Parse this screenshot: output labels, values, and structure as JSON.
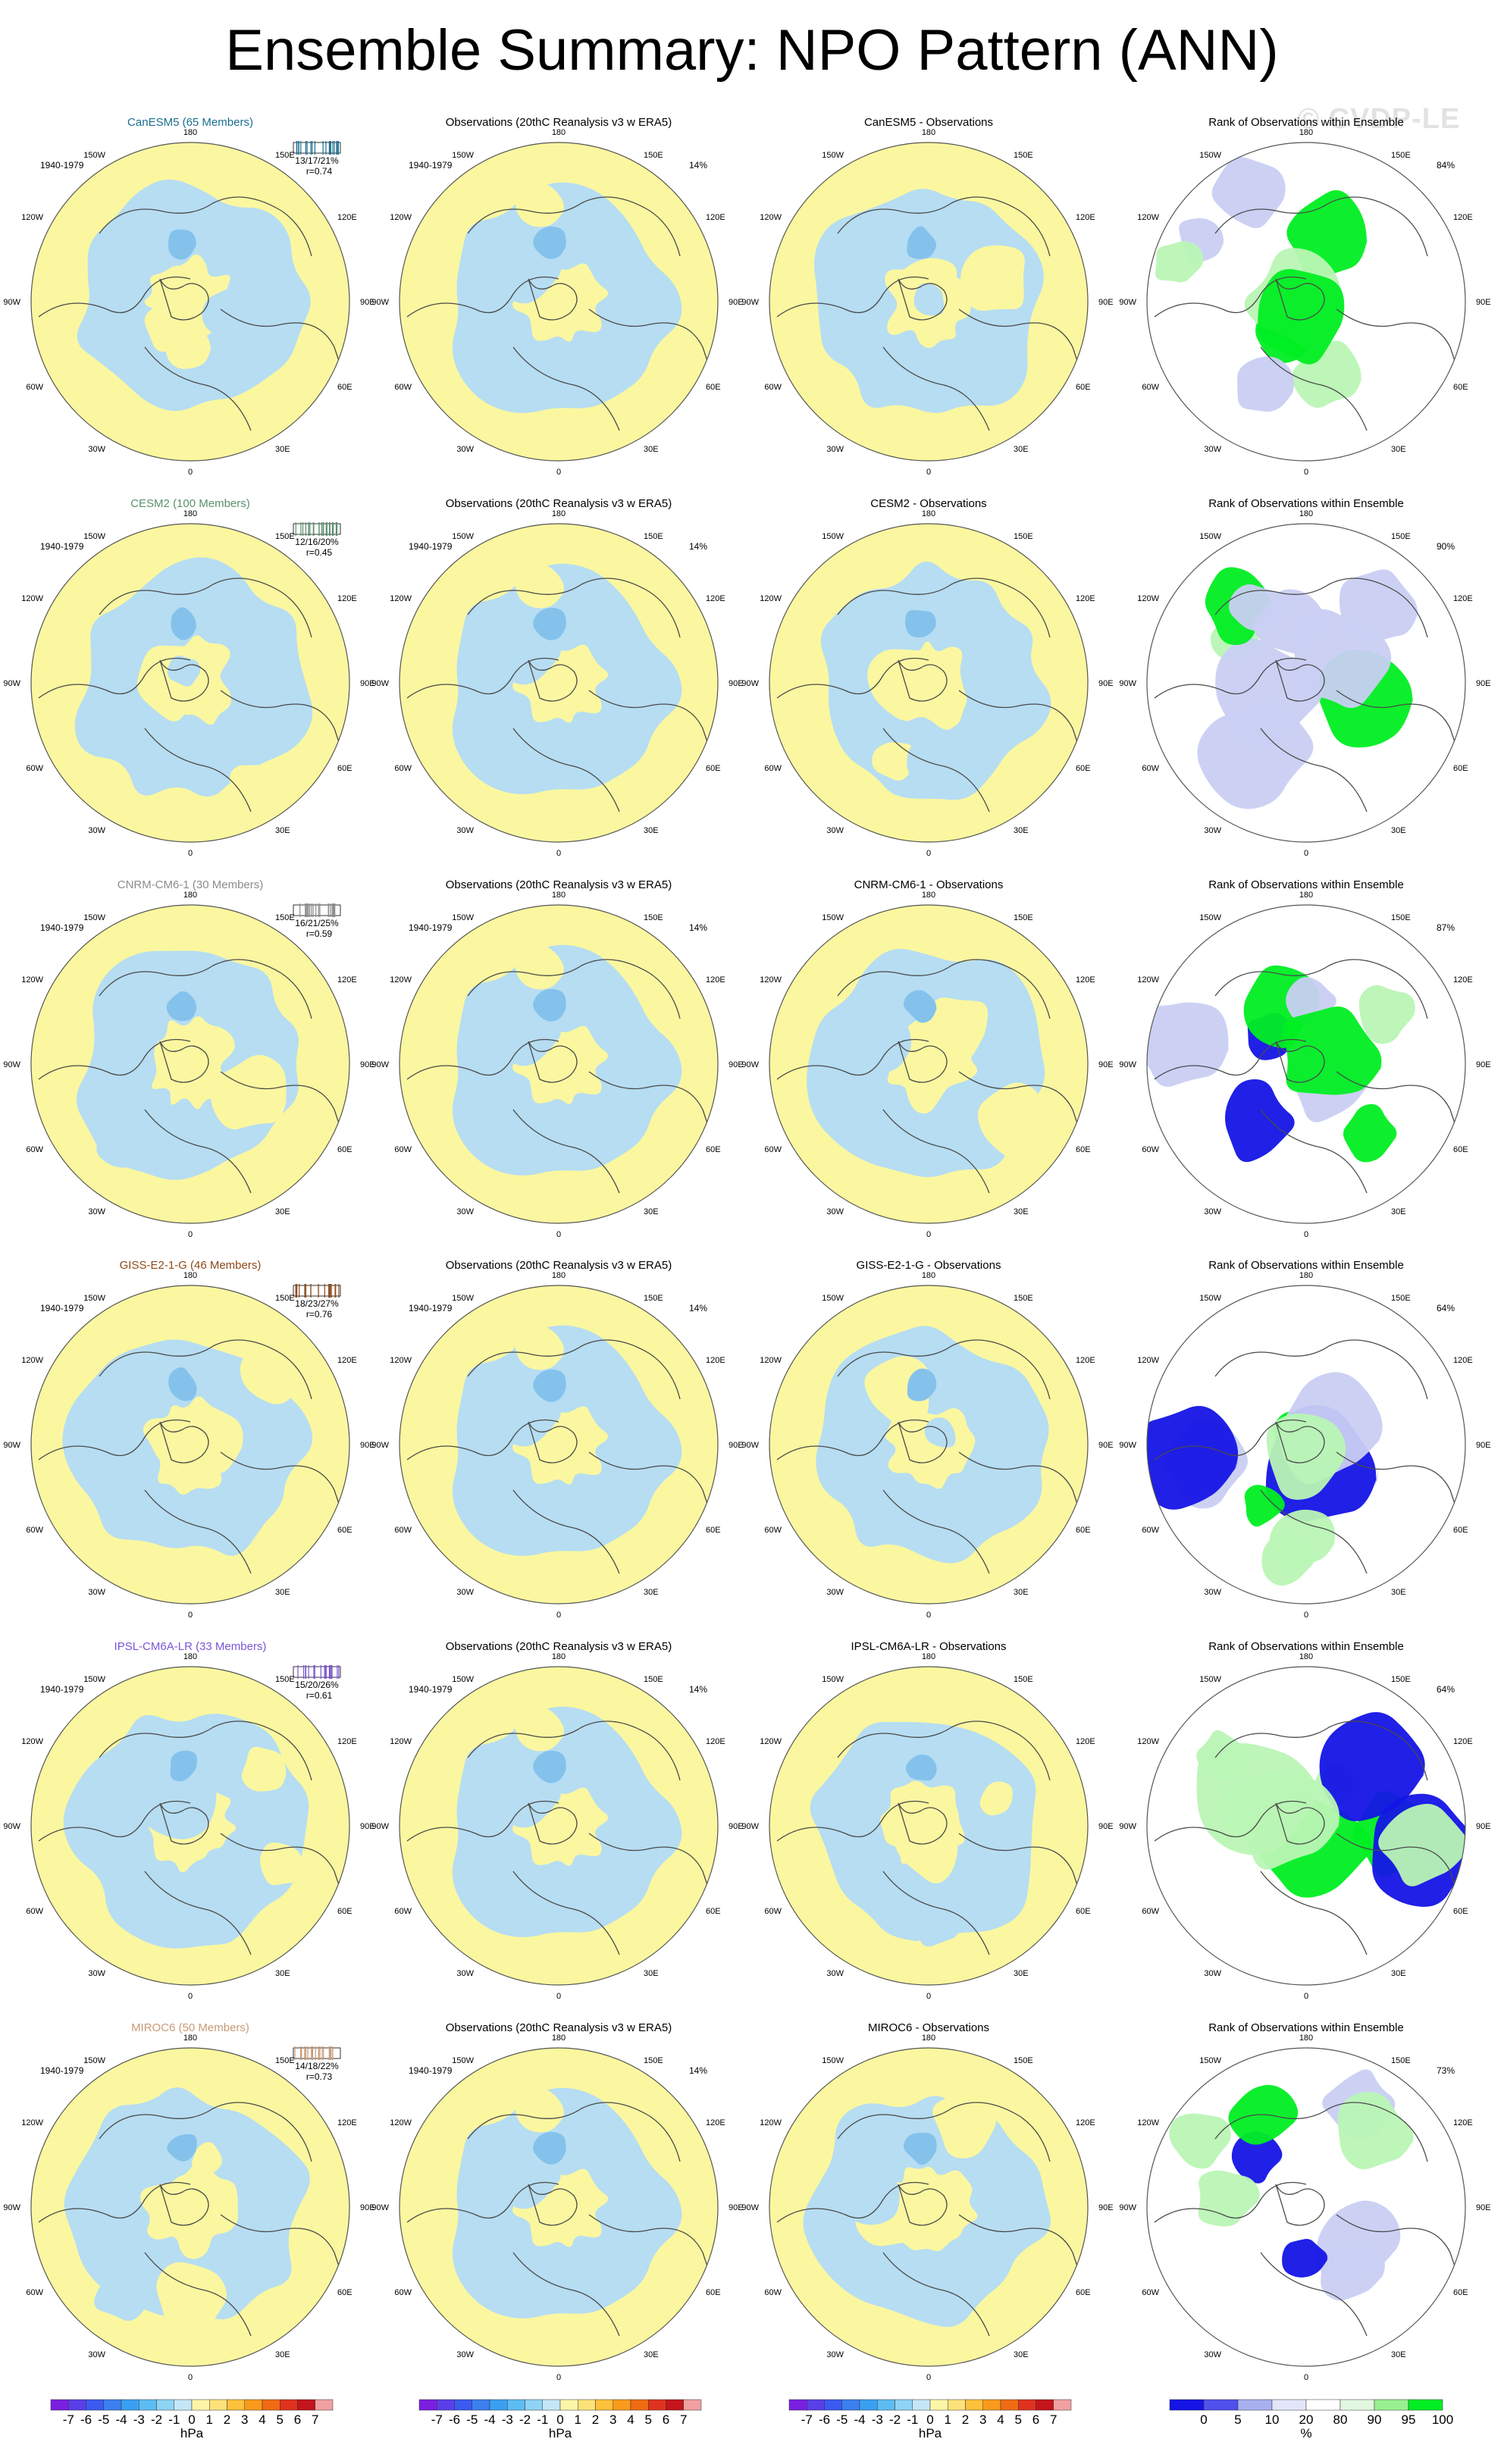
{
  "page": {
    "title": "Ensemble Summary: NPO Pattern (ANN)",
    "watermark": "© CVDP-LE"
  },
  "panel_text": {
    "period": "1940-1979",
    "obs_title": "Observations (20thC Reanalysis v3 w ERA5)",
    "obs_pct": "14%",
    "rank_title": "Rank of Observations within Ensemble",
    "diff_suffix": " - Observations",
    "lon_labels": [
      "180",
      "150E",
      "120E",
      "90E",
      "60E",
      "30E",
      "0",
      "30W",
      "60W",
      "90W",
      "120W",
      "150W"
    ]
  },
  "colors": {
    "ocean": "#ffffff",
    "rim": "#555555",
    "coast": "#4a4a4a",
    "positive_fill": "#fbf7a0",
    "negative_fill": "#b6ddf2",
    "dark_negative_fill": "#84c2ec",
    "dark_positive_fill": "#f7d84a",
    "rank_high": "#00ee22",
    "rank_high_light": "#b9f5b4",
    "rank_low": "#1414e6",
    "rank_low_light": "#c9cff3"
  },
  "rows": [
    {
      "model": "CanESM5 (65 Members)",
      "model_color": "#1a6f8f",
      "stats": "13/17/21%",
      "r": "r=0.74",
      "diff_title": "CanESM5 - Observations",
      "rank_pct": "84%"
    },
    {
      "model": "CESM2 (100 Members)",
      "model_color": "#5a8f6f",
      "stats": "12/16/20%",
      "r": "r=0.45",
      "diff_title": "CESM2 - Observations",
      "rank_pct": "90%"
    },
    {
      "model": "CNRM-CM6-1 (30 Members)",
      "model_color": "#8c8c8c",
      "stats": "16/21/25%",
      "r": "r=0.59",
      "diff_title": "CNRM-CM6-1 - Observations",
      "rank_pct": "87%"
    },
    {
      "model": "GISS-E2-1-G (46 Members)",
      "model_color": "#8b4a1a",
      "stats": "18/23/27%",
      "r": "r=0.76",
      "diff_title": "GISS-E2-1-G - Observations",
      "rank_pct": "64%"
    },
    {
      "model": "IPSL-CM6A-LR (33 Members)",
      "model_color": "#7a55d6",
      "stats": "15/20/26%",
      "r": "r=0.61",
      "diff_title": "IPSL-CM6A-LR - Observations",
      "rank_pct": "64%"
    },
    {
      "model": "MIROC6 (50 Members)",
      "model_color": "#c79a76",
      "stats": "14/18/22%",
      "r": "r=0.73",
      "diff_title": "MIROC6 - Observations",
      "rank_pct": "73%"
    }
  ],
  "colorbars": {
    "hpa": {
      "labels": [
        "-7",
        "-6",
        "-5",
        "-4",
        "-3",
        "-2",
        "-1",
        "0",
        "1",
        "2",
        "3",
        "4",
        "5",
        "6",
        "7"
      ],
      "colors": [
        "#7a1fe0",
        "#5a3ee8",
        "#3a5af0",
        "#3b7ff0",
        "#3a9ff2",
        "#5cbdf2",
        "#8fd3f5",
        "#c4e7f7",
        "#fdf6a8",
        "#fde27a",
        "#fdc13c",
        "#f99a1c",
        "#f06b12",
        "#e0321e",
        "#c4141c",
        "#f0a0a0"
      ],
      "unit": "hPa"
    },
    "rank": {
      "labels": [
        "0",
        "5",
        "10",
        "20",
        "80",
        "90",
        "95",
        "100"
      ],
      "colors": [
        "#1414e6",
        "#5050ec",
        "#a8b0f0",
        "#e2e6f8",
        "#ffffff",
        "#e2f8e0",
        "#98f090",
        "#00ee22"
      ],
      "unit": "%"
    }
  }
}
